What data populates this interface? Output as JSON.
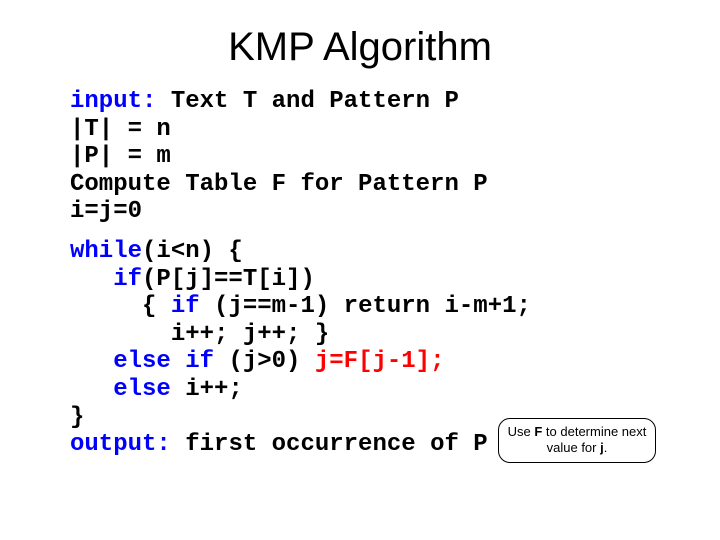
{
  "title": "KMP Algorithm",
  "colors": {
    "text": "#000000",
    "keyword_blue": "#0000ff",
    "highlight_red": "#ff0000",
    "background": "#ffffff",
    "callout_border": "#000000"
  },
  "typography": {
    "title_font": "Arial",
    "title_fontsize_pt": 40,
    "code_font": "Courier New",
    "code_fontsize_pt": 24,
    "code_fontweight": "bold",
    "callout_fontsize_pt": 13
  },
  "code": {
    "l1a": "input:",
    "l1b": " Text T and Pattern P",
    "l2": "|T| = n",
    "l3": "|P| = m",
    "l4": "Compute Table F for Pattern P",
    "l5": "i=j=0",
    "l6a": "while",
    "l6b": "(i<n) {",
    "l7a": "   if",
    "l7b": "(P[j]==T[i])",
    "l8a": "     { ",
    "l8b": "if ",
    "l8c": "(j==m-1) return i-m+1;",
    "l9": "       i++; j++; }",
    "l10a": "   else if ",
    "l10b": "(j>0) ",
    "l10c": "j=F[j-1];",
    "l11a": "   else ",
    "l11b": "i++;",
    "l12": "}",
    "l13a": "output:",
    "l13b": " first occurrence of P in T"
  },
  "callout": {
    "pre": "Use ",
    "bold1": "F",
    "mid": " to determine next value for ",
    "bold2": "j",
    "post": "."
  }
}
